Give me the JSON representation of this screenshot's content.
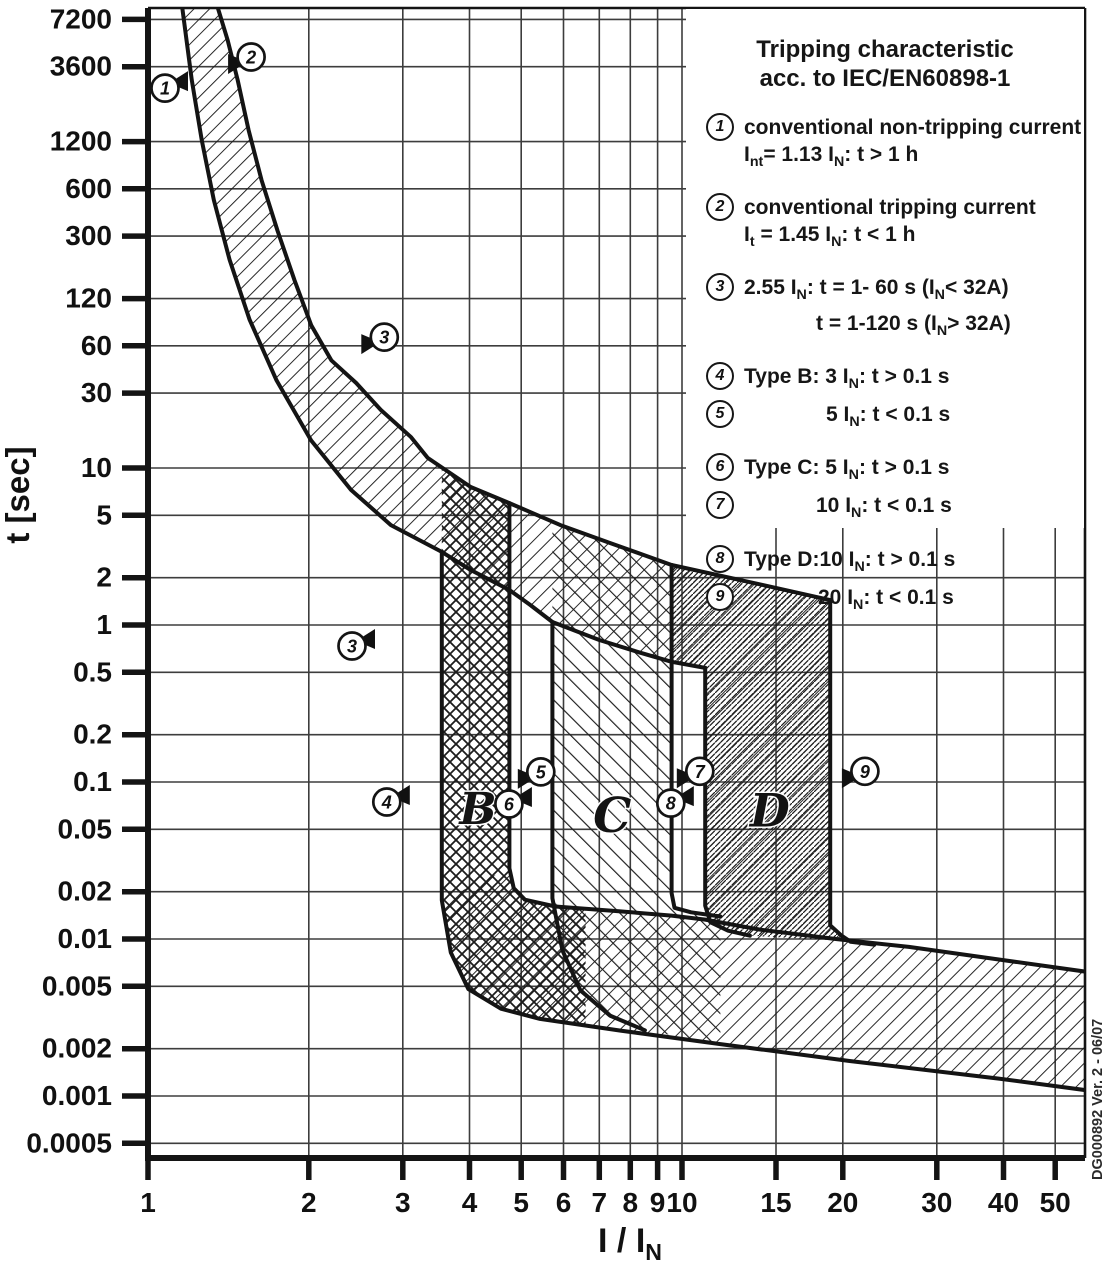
{
  "figure": {
    "doc_ref": "DG000892 Ver. 2 - 06/07"
  },
  "axes": {
    "y_label": "t [sec]",
    "x_label": "I / I_{N}",
    "y_ticks": [
      "7200",
      "3600",
      "1200",
      "600",
      "300",
      "120",
      "60",
      "30",
      "10",
      "5",
      "2",
      "1",
      "0.5",
      "0.2",
      "0.1",
      "0.05",
      "0.02",
      "0.01",
      "0.005",
      "0.002",
      "0.001",
      "0.0005"
    ],
    "x_ticks": [
      "1",
      "2",
      "3",
      "4",
      "5",
      "6",
      "7",
      "8",
      "9",
      "10",
      "15",
      "20",
      "30",
      "40",
      "50"
    ]
  },
  "legend": {
    "title1": "Tripping characteristic",
    "title2": "acc. to IEC/EN60898-1",
    "items": [
      {
        "num": "1",
        "gap": true,
        "lines": [
          {
            "t": "conventional non-tripping current",
            "ind": 0
          },
          {
            "t": "I_{nt}= 1.13 I_{N}: t > 1 h",
            "ind": 0
          }
        ]
      },
      {
        "num": "2",
        "gap": true,
        "lines": [
          {
            "t": "conventional tripping current",
            "ind": 0
          },
          {
            "t": "I_{t} = 1.45 I_{N}: t < 1 h",
            "ind": 0
          }
        ]
      },
      {
        "num": "3",
        "gap": true,
        "lines": [
          {
            "t": "2.55 I_{N}: t = 1- 60 s (I_{N}< 32A)",
            "ind": 0
          },
          {
            "t": "t = 1-120 s (I_{N}> 32A)",
            "ind": 72
          }
        ]
      },
      {
        "num": "4",
        "gap": true,
        "lines": [
          {
            "t": "Type B: 3 I_{N}: t > 0.1 s",
            "ind": 0
          }
        ]
      },
      {
        "num": "5",
        "gap": false,
        "lines": [
          {
            "t": "5 I_{N}: t < 0.1 s",
            "ind": 82
          }
        ]
      },
      {
        "num": "6",
        "gap": true,
        "lines": [
          {
            "t": "Type C: 5 I_{N}: t > 0.1 s",
            "ind": 0
          }
        ]
      },
      {
        "num": "7",
        "gap": false,
        "lines": [
          {
            "t": "10 I_{N}: t < 0.1 s",
            "ind": 72
          }
        ]
      },
      {
        "num": "8",
        "gap": true,
        "lines": [
          {
            "t": "Type D:10 I_{N}: t > 0.1 s",
            "ind": 0
          }
        ]
      },
      {
        "num": "9",
        "gap": false,
        "lines": [
          {
            "t": "20 I_{N}: t < 0.1 s",
            "ind": 74
          }
        ]
      }
    ]
  },
  "chart_data": {
    "type": "area",
    "title": "Tripping characteristic acc. to IEC/EN60898-1",
    "xlabel": "I / I_N",
    "ylabel": "t [sec]",
    "x_range": [
      1,
      57
    ],
    "y_range": [
      0.0004,
      8600
    ],
    "x_scale": "log",
    "y_scale": "log",
    "trip_multiples": {
      "B": [
        3,
        5
      ],
      "C": [
        5,
        10
      ],
      "D": [
        10,
        20
      ]
    },
    "bands": [
      {
        "name": "thermal-band-and-D-column",
        "hatch": "slash",
        "points": [
          [
            1.157,
            9000
          ],
          [
            1.208,
            2950
          ],
          [
            1.261,
            1220
          ],
          [
            1.328,
            510
          ],
          [
            1.422,
            212
          ],
          [
            1.55,
            88
          ],
          [
            1.74,
            36.2
          ],
          [
            2.02,
            15.0
          ],
          [
            2.4,
            7.25
          ],
          [
            2.85,
            4.33
          ],
          [
            3.55,
            2.92
          ],
          [
            4.02,
            2.24
          ],
          [
            4.75,
            1.67
          ],
          [
            5.2,
            1.34
          ],
          [
            5.72,
            1.045
          ],
          [
            7.0,
            0.803
          ],
          [
            8.35,
            0.666
          ],
          [
            9.56,
            0.583
          ],
          [
            11.05,
            0.533
          ],
          [
            11.05,
            0.0163
          ],
          [
            11.3,
            0.0128
          ],
          [
            12.2,
            0.0113
          ],
          [
            13.4,
            0.0105
          ],
          [
            19.4,
            0.0098
          ],
          [
            19.9,
            0.0105
          ],
          [
            18.95,
            0.0122
          ],
          [
            18.95,
            1.44
          ],
          [
            14.15,
            1.8
          ],
          [
            9.56,
            2.41
          ],
          [
            7.33,
            3.33
          ],
          [
            5.92,
            4.33
          ],
          [
            4.75,
            5.98
          ],
          [
            4.02,
            7.57
          ],
          [
            3.34,
            11.6
          ],
          [
            3.11,
            15.7
          ],
          [
            2.73,
            23.4
          ],
          [
            2.454,
            34.8
          ],
          [
            2.204,
            48.5
          ],
          [
            2.022,
            81
          ],
          [
            1.881,
            157
          ],
          [
            1.748,
            325
          ],
          [
            1.632,
            680
          ],
          [
            1.543,
            1420
          ],
          [
            1.472,
            2950
          ],
          [
            1.41,
            5300
          ],
          [
            1.345,
            9000
          ]
        ]
      },
      {
        "name": "bottom-band",
        "hatch": "slash",
        "points": [
          [
            3.55,
            0.0177
          ],
          [
            4.75,
            0.0282
          ],
          [
            4.84,
            0.0211
          ],
          [
            5.08,
            0.0178
          ],
          [
            5.79,
            0.0161
          ],
          [
            7.67,
            0.015
          ],
          [
            9.56,
            0.0141
          ],
          [
            11.05,
            0.0133
          ],
          [
            13.95,
            0.0115
          ],
          [
            19.4,
            0.01
          ],
          [
            26.6,
            0.0089
          ],
          [
            39.2,
            0.0074
          ],
          [
            56.9,
            0.0062
          ],
          [
            56.9,
            0.00109
          ],
          [
            39.2,
            0.00129
          ],
          [
            20.6,
            0.00167
          ],
          [
            11.8,
            0.00214
          ],
          [
            7.67,
            0.00261
          ],
          [
            5.42,
            0.0031
          ],
          [
            4.58,
            0.0036
          ],
          [
            3.98,
            0.0048
          ],
          [
            3.69,
            0.0082
          ]
        ]
      },
      {
        "name": "type-B-column",
        "hatch": "cross",
        "points": [
          [
            3.55,
            9.85
          ],
          [
            3.55,
            0.0177
          ],
          [
            3.69,
            0.0082
          ],
          [
            3.98,
            0.0048
          ],
          [
            4.58,
            0.0036
          ],
          [
            5.42,
            0.0031
          ],
          [
            6.6,
            0.00285
          ],
          [
            6.6,
            0.0155
          ],
          [
            5.79,
            0.0161
          ],
          [
            5.08,
            0.0178
          ],
          [
            4.84,
            0.0211
          ],
          [
            4.75,
            0.0282
          ],
          [
            4.75,
            5.98
          ],
          [
            4.02,
            7.57
          ]
        ]
      },
      {
        "name": "type-C-column",
        "hatch": "backslash",
        "points": [
          [
            5.72,
            4.53
          ],
          [
            5.72,
            0.0182
          ],
          [
            5.97,
            0.00847
          ],
          [
            6.45,
            0.00471
          ],
          [
            7.33,
            0.00325
          ],
          [
            8.52,
            0.00262
          ],
          [
            11.8,
            0.00214
          ],
          [
            11.8,
            0.0139
          ],
          [
            10.4,
            0.0148
          ],
          [
            9.68,
            0.0158
          ],
          [
            9.56,
            0.0196
          ],
          [
            9.56,
            2.41
          ],
          [
            7.33,
            3.33
          ],
          [
            5.92,
            4.33
          ]
        ]
      },
      {
        "name": "type-D-column",
        "hatch": "dense",
        "points": [
          [
            9.56,
            2.41
          ],
          [
            9.56,
            0.6
          ],
          [
            10.2,
            0.565
          ],
          [
            11.05,
            0.533
          ],
          [
            11.05,
            0.0163
          ],
          [
            11.3,
            0.0128
          ],
          [
            12.2,
            0.0113
          ],
          [
            13.4,
            0.0105
          ],
          [
            19.4,
            0.0098
          ],
          [
            19.9,
            0.0105
          ],
          [
            18.95,
            0.0122
          ],
          [
            18.95,
            1.44
          ],
          [
            14.15,
            1.8
          ]
        ]
      }
    ],
    "strokes": [
      {
        "name": "curve-min-1.13IN",
        "points": [
          [
            1.157,
            9000
          ],
          [
            1.208,
            2950
          ],
          [
            1.261,
            1220
          ],
          [
            1.328,
            510
          ],
          [
            1.422,
            212
          ],
          [
            1.55,
            88
          ],
          [
            1.74,
            36.2
          ],
          [
            2.02,
            15.0
          ],
          [
            2.4,
            7.25
          ],
          [
            2.85,
            4.33
          ],
          [
            3.55,
            2.92
          ],
          [
            4.02,
            2.24
          ],
          [
            4.75,
            1.67
          ],
          [
            5.2,
            1.34
          ],
          [
            5.72,
            1.045
          ],
          [
            7.0,
            0.803
          ],
          [
            8.35,
            0.666
          ],
          [
            9.56,
            0.583
          ],
          [
            11.05,
            0.533
          ]
        ]
      },
      {
        "name": "curve-max-1.45IN",
        "points": [
          [
            1.345,
            9000
          ],
          [
            1.41,
            5300
          ],
          [
            1.472,
            2950
          ],
          [
            1.543,
            1420
          ],
          [
            1.632,
            680
          ],
          [
            1.748,
            325
          ],
          [
            1.881,
            157
          ],
          [
            2.022,
            81
          ],
          [
            2.204,
            48.5
          ],
          [
            2.454,
            34.8
          ],
          [
            2.73,
            23.4
          ],
          [
            3.11,
            15.7
          ],
          [
            3.34,
            11.6
          ],
          [
            4.02,
            7.57
          ],
          [
            4.75,
            5.98
          ],
          [
            5.92,
            4.33
          ],
          [
            7.33,
            3.33
          ],
          [
            9.56,
            2.41
          ],
          [
            14.15,
            1.8
          ],
          [
            18.95,
            1.44
          ]
        ]
      },
      {
        "name": "B-left-drop",
        "points": [
          [
            3.55,
            2.92
          ],
          [
            3.55,
            0.0177
          ],
          [
            3.69,
            0.0082
          ],
          [
            3.98,
            0.0048
          ],
          [
            4.58,
            0.0036
          ],
          [
            5.42,
            0.0031
          ],
          [
            7.67,
            0.00261
          ],
          [
            11.8,
            0.00214
          ],
          [
            20.6,
            0.00167
          ],
          [
            39.2,
            0.00129
          ],
          [
            56.9,
            0.00109
          ]
        ]
      },
      {
        "name": "B-right-drop",
        "points": [
          [
            4.75,
            5.98
          ],
          [
            4.75,
            0.0282
          ],
          [
            4.84,
            0.0211
          ],
          [
            5.08,
            0.0178
          ],
          [
            5.79,
            0.0161
          ],
          [
            7.67,
            0.015
          ],
          [
            9.56,
            0.0141
          ],
          [
            11.05,
            0.0133
          ],
          [
            13.95,
            0.0115
          ],
          [
            19.4,
            0.01
          ],
          [
            26.6,
            0.0089
          ],
          [
            39.2,
            0.0074
          ],
          [
            56.9,
            0.0062
          ]
        ]
      },
      {
        "name": "C-left-drop",
        "points": [
          [
            5.72,
            1.045
          ],
          [
            5.72,
            0.0182
          ],
          [
            5.97,
            0.00847
          ],
          [
            6.45,
            0.00471
          ],
          [
            7.33,
            0.00325
          ],
          [
            8.52,
            0.00262
          ]
        ]
      },
      {
        "name": "C-right-drop",
        "points": [
          [
            9.56,
            2.41
          ],
          [
            9.56,
            0.0196
          ],
          [
            9.68,
            0.0158
          ],
          [
            10.4,
            0.0148
          ],
          [
            11.8,
            0.0139
          ]
        ]
      },
      {
        "name": "D-left-drop",
        "points": [
          [
            11.05,
            0.533
          ],
          [
            11.05,
            0.0163
          ],
          [
            11.3,
            0.0128
          ],
          [
            12.2,
            0.0113
          ],
          [
            13.4,
            0.0105
          ]
        ]
      },
      {
        "name": "D-right-drop",
        "points": [
          [
            18.95,
            1.44
          ],
          [
            18.95,
            0.0122
          ],
          [
            19.9,
            0.0105
          ],
          [
            20.7,
            0.0096
          ],
          [
            22.9,
            0.0092
          ]
        ]
      }
    ],
    "annotations": {
      "markers": [
        {
          "num": "1",
          "I": 1.076,
          "t": 2630,
          "flag": "tr"
        },
        {
          "num": "2",
          "I": 1.56,
          "t": 4150,
          "flag": "bl"
        },
        {
          "num": "3",
          "I": 2.77,
          "t": 68.2,
          "flag": "bl"
        },
        {
          "num": "3",
          "I": 2.41,
          "t": 0.735,
          "flag": "tr"
        },
        {
          "num": "4",
          "I": 2.8,
          "t": 0.0746,
          "flag": "tr"
        },
        {
          "num": "5",
          "I": 5.44,
          "t": 0.116,
          "flag": "bl"
        },
        {
          "num": "6",
          "I": 4.74,
          "t": 0.0724,
          "flag": "tr"
        },
        {
          "num": "7",
          "I": 10.8,
          "t": 0.117,
          "flag": "bl"
        },
        {
          "num": "8",
          "I": 9.53,
          "t": 0.0734,
          "flag": "tr"
        },
        {
          "num": "9",
          "I": 22.0,
          "t": 0.117,
          "flag": "bl"
        }
      ],
      "letters": [
        {
          "label": "B",
          "I": 4.15,
          "t": 0.0682,
          "size": 44
        },
        {
          "label": "C",
          "I": 7.4,
          "t": 0.0617,
          "size": 48
        },
        {
          "label": "D",
          "I": 14.6,
          "t": 0.0662,
          "size": 46
        }
      ]
    }
  }
}
